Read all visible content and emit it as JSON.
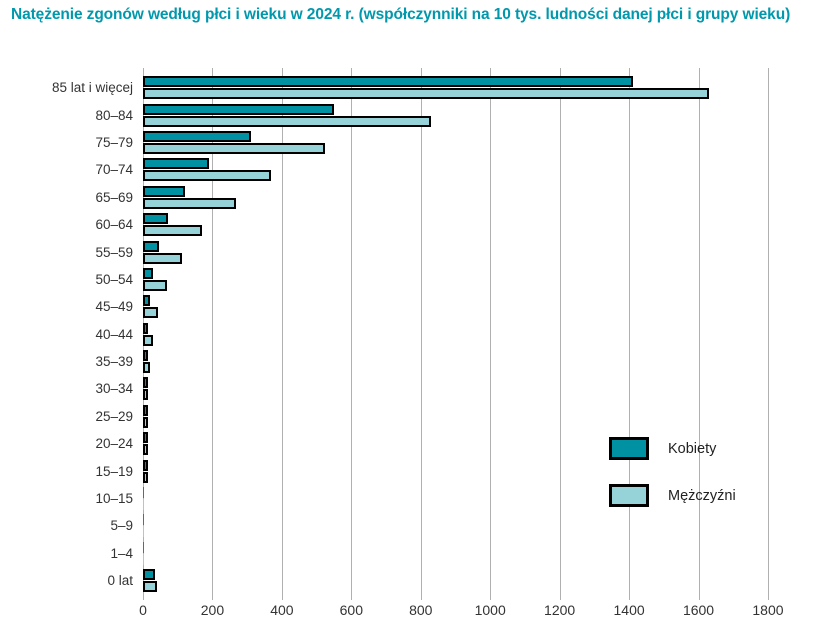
{
  "title": "Natężenie zgonów według płci i wieku w 2024 r. (współczynniki na 10 tys. ludności danej płci i grupy wieku)",
  "colors": {
    "title_teal": "#0098AC",
    "kobiety_fill": "#0092A2",
    "mezczyzni_fill": "#96D3D9",
    "bar_outline": "#000000",
    "gridline": "#B0B0B0",
    "axis_text": "#333333"
  },
  "legend": {
    "items": [
      {
        "label": "Kobiety",
        "color": "#0092A2"
      },
      {
        "label": "Mężczyźni",
        "color": "#96D3D9"
      }
    ]
  },
  "chart_data": {
    "type": "bar",
    "orientation": "horizontal",
    "title": "Natężenie zgonów według płci i wieku w 2024 r. (współczynniki na 10 tys. ludności danej płci i grupy wieku)",
    "categories": [
      "85 lat i więcej",
      "80–84",
      "75–79",
      "70–74",
      "65–69",
      "60–64",
      "55–59",
      "50–54",
      "45–49",
      "40–44",
      "35–39",
      "30–34",
      "25–29",
      "20–24",
      "15–19",
      "10–15",
      "5–9",
      "1–4",
      "0 lat"
    ],
    "series": [
      {
        "name": "Kobiety",
        "color": "#0092A2",
        "values": [
          1410,
          550,
          310,
          190,
          120,
          73,
          45,
          29,
          20,
          13,
          10,
          6,
          4,
          3,
          3,
          1,
          1,
          1,
          35
        ]
      },
      {
        "name": "Mężczyźni",
        "color": "#96D3D9",
        "values": [
          1630,
          830,
          525,
          370,
          268,
          170,
          113,
          70,
          44,
          28,
          20,
          14,
          12,
          10,
          7,
          2,
          1,
          1,
          40
        ]
      }
    ],
    "xlabel": "",
    "ylabel": "",
    "xlim": [
      0,
      1800
    ],
    "xticks": [
      0,
      200,
      400,
      600,
      800,
      1000,
      1200,
      1400,
      1600,
      1800
    ],
    "grid": true,
    "legend_position": "inside-right"
  }
}
